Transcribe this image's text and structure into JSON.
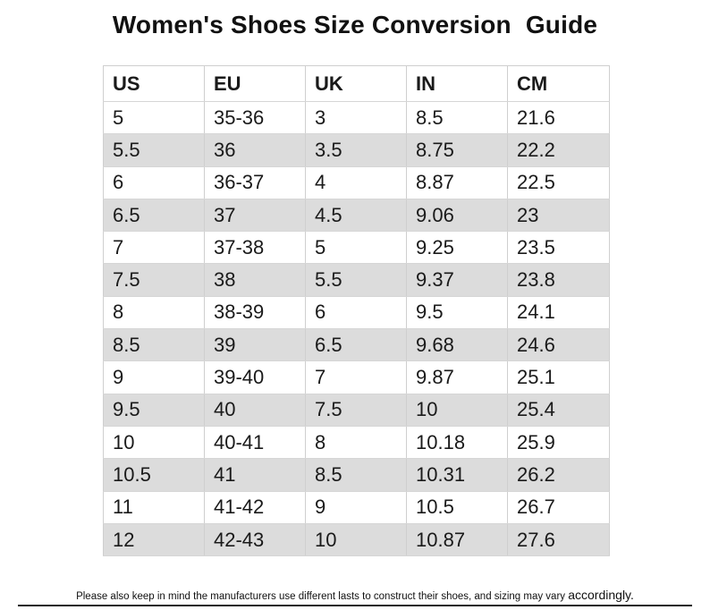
{
  "title": "Women's Shoes Size Conversion  Guide",
  "table": {
    "headers": [
      "US",
      "EU",
      "UK",
      "IN",
      "CM"
    ],
    "rows": [
      [
        "5",
        "35-36",
        "3",
        "8.5",
        "21.6"
      ],
      [
        "5.5",
        "36",
        "3.5",
        "8.75",
        "22.2"
      ],
      [
        "6",
        "36-37",
        "4",
        "8.87",
        "22.5"
      ],
      [
        "6.5",
        "37",
        "4.5",
        "9.06",
        "23"
      ],
      [
        "7",
        "37-38",
        "5",
        "9.25",
        "23.5"
      ],
      [
        "7.5",
        "38",
        "5.5",
        "9.37",
        "23.8"
      ],
      [
        "8",
        "38-39",
        "6",
        "9.5",
        "24.1"
      ],
      [
        "8.5",
        "39",
        "6.5",
        "9.68",
        "24.6"
      ],
      [
        "9",
        "39-40",
        "7",
        "9.87",
        "25.1"
      ],
      [
        "9.5",
        "40",
        "7.5",
        "10",
        "25.4"
      ],
      [
        "10",
        "40-41",
        "8",
        "10.18",
        "25.9"
      ],
      [
        "10.5",
        "41",
        "8.5",
        "10.31",
        "26.2"
      ],
      [
        "11",
        "41-42",
        "9",
        "10.5",
        "26.7"
      ],
      [
        "12",
        "42-43",
        "10",
        "10.87",
        "27.6"
      ]
    ]
  },
  "footnote": {
    "main": "Please also keep in mind the manufacturers use different lasts to construct their shoes, and sizing may vary ",
    "emphasis": "accordingly."
  },
  "colors": {
    "stripe": "#dcdcdc",
    "text": "#111111",
    "grid": "#cfcfcf"
  }
}
